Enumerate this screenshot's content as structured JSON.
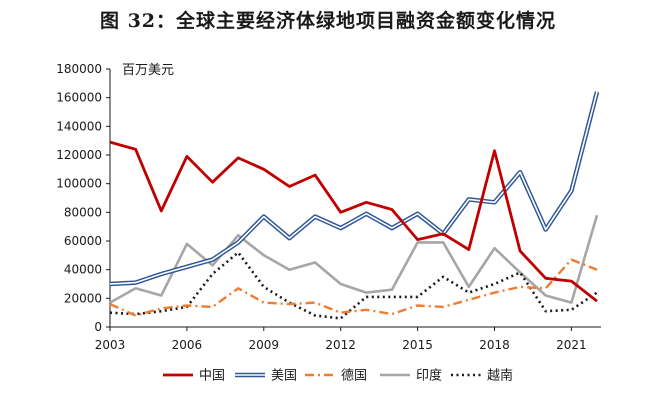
{
  "chart_data": {
    "type": "line",
    "title": "图 32：全球主要经济体绿地项目融资金额变化情况",
    "unit_label": "百万美元",
    "x": [
      2003,
      2004,
      2005,
      2006,
      2007,
      2008,
      2009,
      2010,
      2011,
      2012,
      2013,
      2014,
      2015,
      2016,
      2017,
      2018,
      2019,
      2020,
      2021,
      2022
    ],
    "x_ticks": [
      "2003",
      "2006",
      "2009",
      "2012",
      "2015",
      "2018",
      "2021"
    ],
    "y_ticks": [
      "0",
      "20000",
      "40000",
      "60000",
      "80000",
      "100000",
      "120000",
      "140000",
      "160000",
      "180000"
    ],
    "ylim": [
      0,
      180000
    ],
    "grid": false,
    "legend_position": "bottom",
    "series": [
      {
        "name": "中国",
        "color": "#c00000",
        "style": "solid",
        "values": [
          129000,
          124000,
          81000,
          119000,
          101000,
          118000,
          110000,
          98000,
          106000,
          80000,
          87000,
          82000,
          61000,
          65000,
          54000,
          123000,
          53000,
          34000,
          32000,
          18000
        ]
      },
      {
        "name": "美国",
        "color": "#2e5597",
        "style": "double",
        "values": [
          30000,
          31000,
          37000,
          42000,
          47000,
          59000,
          77000,
          62000,
          77000,
          69000,
          79000,
          69000,
          79000,
          65000,
          89000,
          87000,
          108000,
          68000,
          95000,
          164000
        ]
      },
      {
        "name": "德国",
        "color": "#ed7d31",
        "style": "dashdot",
        "values": [
          16000,
          8000,
          13000,
          15000,
          14000,
          27000,
          17000,
          16000,
          17000,
          10000,
          12000,
          9000,
          15000,
          14000,
          19000,
          24000,
          28000,
          27000,
          47000,
          40000
        ]
      },
      {
        "name": "印度",
        "color": "#a6a6a6",
        "style": "solid",
        "values": [
          17000,
          27000,
          22000,
          58000,
          43000,
          64000,
          50000,
          40000,
          45000,
          30000,
          24000,
          26000,
          59000,
          59000,
          28000,
          55000,
          38000,
          22000,
          17000,
          78000
        ]
      },
      {
        "name": "越南",
        "color": "#1a1a1a",
        "style": "dotted",
        "values": [
          10000,
          9000,
          11000,
          14000,
          37000,
          52000,
          28000,
          17000,
          8000,
          6000,
          21000,
          21000,
          21000,
          35000,
          24000,
          30000,
          38000,
          11000,
          12000,
          24000
        ]
      }
    ]
  }
}
